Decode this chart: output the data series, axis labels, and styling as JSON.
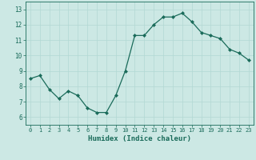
{
  "x": [
    0,
    1,
    2,
    3,
    4,
    5,
    6,
    7,
    8,
    9,
    10,
    11,
    12,
    13,
    14,
    15,
    16,
    17,
    18,
    19,
    20,
    21,
    22,
    23
  ],
  "y": [
    8.5,
    8.7,
    7.8,
    7.2,
    7.7,
    7.4,
    6.6,
    6.3,
    6.3,
    7.4,
    9.0,
    11.3,
    11.3,
    12.0,
    12.5,
    12.5,
    12.75,
    12.2,
    11.5,
    11.3,
    11.1,
    10.4,
    10.15,
    9.7
  ],
  "xlabel": "Humidex (Indice chaleur)",
  "xlim": [
    -0.5,
    23.5
  ],
  "ylim": [
    5.5,
    13.5
  ],
  "yticks": [
    6,
    7,
    8,
    9,
    10,
    11,
    12,
    13
  ],
  "xticks": [
    0,
    1,
    2,
    3,
    4,
    5,
    6,
    7,
    8,
    9,
    10,
    11,
    12,
    13,
    14,
    15,
    16,
    17,
    18,
    19,
    20,
    21,
    22,
    23
  ],
  "line_color": "#1a6b5a",
  "marker_color": "#1a6b5a",
  "bg_color": "#cce8e4",
  "grid_color": "#b2d8d3",
  "tick_label_color": "#1a6b5a",
  "xlabel_color": "#1a6b5a"
}
